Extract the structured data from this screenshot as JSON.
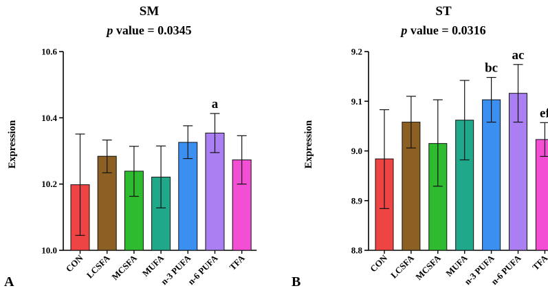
{
  "chart_data": [
    {
      "type": "bar",
      "panel_label": "A",
      "title": "SM",
      "subtitle_italic": "p",
      "subtitle_rest": " value = 0.0345",
      "ylabel": "Expression",
      "ylim": [
        10.0,
        10.6
      ],
      "yticks": [
        "10.0",
        "10.2",
        "10.4",
        "10.6"
      ],
      "ytick_values": [
        10.0,
        10.2,
        10.4,
        10.6
      ],
      "categories": [
        "CON",
        "LCSFA",
        "MCSFA",
        "MUFA",
        "n-3 PUFA",
        "n-6 PUFA",
        "TFA"
      ],
      "values": [
        10.198,
        10.284,
        10.239,
        10.221,
        10.326,
        10.354,
        10.273
      ],
      "error_upper": [
        10.351,
        10.333,
        10.314,
        10.315,
        10.376,
        10.413,
        10.346
      ],
      "error_lower": [
        10.045,
        10.234,
        10.163,
        10.128,
        10.277,
        10.295,
        10.2
      ],
      "annotations": [
        "",
        "",
        "",
        "",
        "",
        "a",
        ""
      ],
      "colors": [
        "#ef4444",
        "#8b6022",
        "#2fbb2f",
        "#1fa98a",
        "#3b8ff0",
        "#a97ff2",
        "#f24fd4"
      ]
    },
    {
      "type": "bar",
      "panel_label": "B",
      "title": "ST",
      "subtitle_italic": "p",
      "subtitle_rest": " value = 0.0316",
      "ylabel": "Expression",
      "ylim": [
        8.8,
        9.2
      ],
      "yticks": [
        "8.8",
        "8.9",
        "9.0",
        "9.1",
        "9.2"
      ],
      "ytick_values": [
        8.8,
        8.9,
        9.0,
        9.1,
        9.2
      ],
      "categories": [
        "CON",
        "LCSFA",
        "MCSFA",
        "MUFA",
        "n-3 PUFA",
        "n-6 PUFA",
        "TFA"
      ],
      "values": [
        8.984,
        9.058,
        9.015,
        9.062,
        9.103,
        9.116,
        9.023
      ],
      "error_upper": [
        9.083,
        9.11,
        9.103,
        9.142,
        9.148,
        9.174,
        9.057
      ],
      "error_lower": [
        8.884,
        9.006,
        8.929,
        8.982,
        9.058,
        9.058,
        8.989
      ],
      "annotations": [
        "",
        "",
        "",
        "",
        "bc",
        "ac",
        "ef"
      ],
      "colors": [
        "#ef4444",
        "#8b6022",
        "#2fbb2f",
        "#1fa98a",
        "#3b8ff0",
        "#a97ff2",
        "#f24fd4"
      ]
    }
  ]
}
